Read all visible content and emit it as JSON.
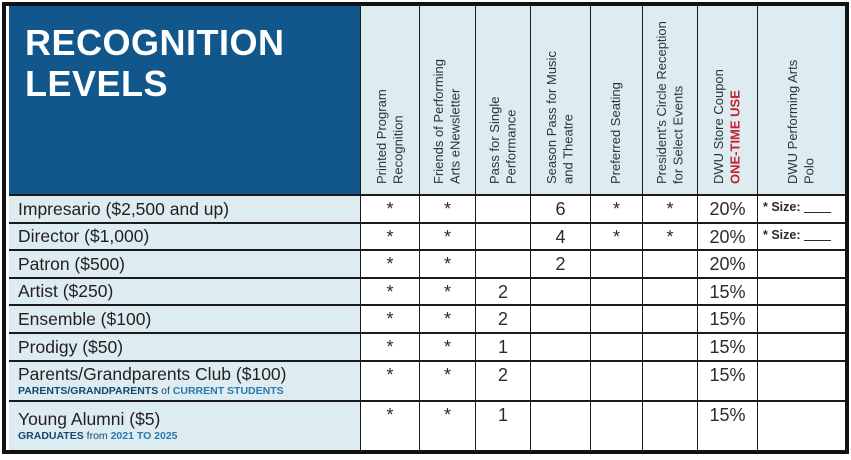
{
  "table_title": "RECOGNITION\nLEVELS",
  "columns": [
    {
      "label": "Printed Program\nRecognition"
    },
    {
      "label": "Friends of Performing\nArts eNewsletter"
    },
    {
      "label": "Pass for Single\nPerformance"
    },
    {
      "label": "Season Pass for Music\nand Theatre"
    },
    {
      "label": "Preferred Seating"
    },
    {
      "label": "President's Circle Reception\nfor Select Events"
    },
    {
      "label": "DWU Store Coupon",
      "sublabel": "ONE-TIME USE"
    },
    {
      "label": "DWU Performing Arts\nPolo"
    }
  ],
  "rows": [
    {
      "level": "Impresario ($2,500 and up)",
      "cells": [
        "*",
        "*",
        "",
        "6",
        "*",
        "*",
        "20%"
      ],
      "polo": "* Size:"
    },
    {
      "level": "Director ($1,000)",
      "cells": [
        "*",
        "*",
        "",
        "4",
        "*",
        "*",
        "20%"
      ],
      "polo": "* Size:"
    },
    {
      "level": "Patron ($500)",
      "cells": [
        "*",
        "*",
        "",
        "2",
        "",
        "",
        "20%"
      ],
      "polo": ""
    },
    {
      "level": "Artist ($250)",
      "cells": [
        "*",
        "*",
        "2",
        "",
        "",
        "",
        "15%"
      ],
      "polo": ""
    },
    {
      "level": "Ensemble ($100)",
      "cells": [
        "*",
        "*",
        "2",
        "",
        "",
        "",
        "15%"
      ],
      "polo": ""
    },
    {
      "level": "Prodigy ($50)",
      "cells": [
        "*",
        "*",
        "1",
        "",
        "",
        "",
        "15%"
      ],
      "polo": ""
    },
    {
      "level": "Parents/Grandparents Club ($100)",
      "sub": {
        "strong": "PARENTS/GRANDPARENTS",
        "mid": " of ",
        "em": "CURRENT STUDENTS"
      },
      "cells": [
        "*",
        "*",
        "2",
        "",
        "",
        "",
        "15%"
      ],
      "polo": ""
    },
    {
      "level": "Young Alumni ($5)",
      "sub": {
        "strong": "GRADUATES",
        "mid": " from ",
        "em": "2021 TO 2025"
      },
      "cells": [
        "*",
        "*",
        "1",
        "",
        "",
        "",
        "15%"
      ],
      "polo": ""
    }
  ],
  "colors": {
    "header_blue": "#11578b",
    "light_blue": "#dcecf0",
    "accent_red": "#c32130",
    "navy_text": "#17476d",
    "bright_blue": "#2a79ad",
    "grid_line": "#1b1b1b",
    "body_text": "#231f20"
  }
}
